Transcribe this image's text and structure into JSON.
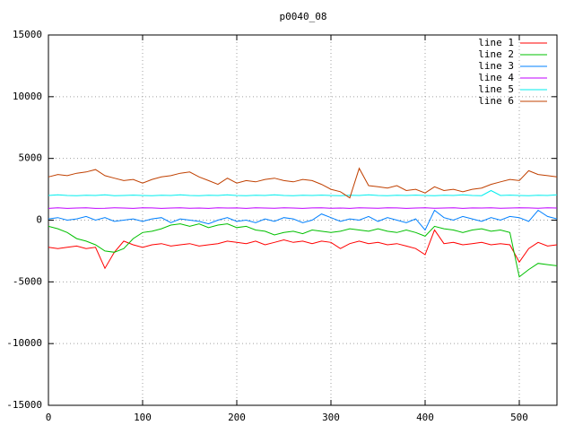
{
  "chart_data": {
    "type": "line",
    "title": "p0040_08",
    "x": [
      0,
      10,
      20,
      30,
      40,
      50,
      60,
      70,
      80,
      90,
      100,
      110,
      120,
      130,
      140,
      150,
      160,
      170,
      180,
      190,
      200,
      210,
      220,
      230,
      240,
      250,
      260,
      270,
      280,
      290,
      300,
      310,
      320,
      330,
      340,
      350,
      360,
      370,
      380,
      390,
      400,
      410,
      420,
      430,
      440,
      450,
      460,
      470,
      480,
      490,
      500,
      510,
      520,
      530,
      540
    ],
    "xlim": [
      0,
      540
    ],
    "xticks": [
      0,
      100,
      200,
      300,
      400,
      500
    ],
    "ylim": [
      -15000,
      15000
    ],
    "yticks": [
      -15000,
      -10000,
      -5000,
      0,
      5000,
      10000,
      15000
    ],
    "grid": true,
    "legend": "top-right",
    "series": [
      {
        "name": "line 1",
        "color": "#ff0000",
        "values": [
          -2200,
          -2300,
          -2200,
          -2100,
          -2300,
          -2200,
          -3900,
          -2600,
          -1700,
          -2000,
          -2200,
          -2000,
          -1900,
          -2100,
          -2000,
          -1900,
          -2100,
          -2000,
          -1900,
          -1700,
          -1800,
          -1900,
          -1700,
          -2000,
          -1800,
          -1600,
          -1800,
          -1700,
          -1900,
          -1700,
          -1800,
          -2300,
          -1900,
          -1700,
          -1900,
          -1800,
          -2000,
          -1900,
          -2100,
          -2300,
          -2800,
          -800,
          -1900,
          -1800,
          -2000,
          -1900,
          -1800,
          -2000,
          -1900,
          -2000,
          -3400,
          -2300,
          -1800,
          -2100,
          -2000
        ]
      },
      {
        "name": "line 2",
        "color": "#00c000",
        "values": [
          -500,
          -700,
          -1000,
          -1500,
          -1700,
          -2000,
          -2500,
          -2600,
          -2300,
          -1500,
          -1000,
          -900,
          -700,
          -400,
          -300,
          -500,
          -300,
          -600,
          -400,
          -300,
          -600,
          -500,
          -800,
          -900,
          -1200,
          -1000,
          -900,
          -1100,
          -800,
          -900,
          -1000,
          -900,
          -700,
          -800,
          -900,
          -700,
          -900,
          -1000,
          -800,
          -1000,
          -1300,
          -500,
          -700,
          -800,
          -1000,
          -800,
          -700,
          -900,
          -800,
          -1000,
          -4600,
          -4000,
          -3500,
          -3600,
          -3700
        ]
      },
      {
        "name": "line 3",
        "color": "#0080ff",
        "values": [
          100,
          200,
          0,
          100,
          300,
          0,
          200,
          -100,
          0,
          100,
          -100,
          100,
          200,
          -200,
          100,
          0,
          -100,
          -300,
          0,
          200,
          -100,
          0,
          -200,
          100,
          -100,
          200,
          100,
          -200,
          0,
          500,
          200,
          -100,
          100,
          0,
          300,
          -100,
          200,
          0,
          -200,
          100,
          -800,
          800,
          200,
          0,
          300,
          100,
          -100,
          200,
          0,
          300,
          200,
          -100,
          800,
          300,
          100
        ]
      },
      {
        "name": "line 4",
        "color": "#c000ff",
        "values": [
          950,
          1000,
          950,
          980,
          1000,
          950,
          960,
          1000,
          980,
          950,
          1000,
          990,
          950,
          980,
          1000,
          960,
          980,
          950,
          1000,
          980,
          990,
          950,
          1000,
          980,
          960,
          1000,
          980,
          950,
          990,
          1000,
          960,
          980,
          950,
          1000,
          980,
          960,
          1000,
          990,
          950,
          980,
          1000,
          960,
          980,
          1000,
          950,
          990,
          980,
          1000,
          960,
          980,
          1000,
          990,
          960,
          1000,
          980
        ]
      },
      {
        "name": "line 5",
        "color": "#00eeee",
        "values": [
          2000,
          2050,
          2000,
          1980,
          2020,
          2000,
          2050,
          1980,
          2000,
          2030,
          2000,
          1980,
          2020,
          2000,
          2050,
          2000,
          1980,
          2020,
          2000,
          2050,
          2000,
          1980,
          2020,
          2000,
          2050,
          2000,
          1980,
          2020,
          2000,
          2030,
          2000,
          1980,
          2020,
          2000,
          2050,
          2000,
          1980,
          2020,
          2000,
          2030,
          2000,
          1980,
          2020,
          2000,
          2050,
          2000,
          1980,
          2400,
          2000,
          2030,
          2000,
          1980,
          2020,
          2000,
          2050
        ]
      },
      {
        "name": "line 6",
        "color": "#c04000",
        "values": [
          3500,
          3700,
          3600,
          3800,
          3900,
          4100,
          3600,
          3400,
          3200,
          3300,
          3000,
          3300,
          3500,
          3600,
          3800,
          3900,
          3500,
          3200,
          2900,
          3400,
          3000,
          3200,
          3100,
          3300,
          3400,
          3200,
          3100,
          3300,
          3200,
          2900,
          2500,
          2300,
          1800,
          4200,
          2800,
          2700,
          2600,
          2800,
          2400,
          2500,
          2200,
          2700,
          2400,
          2500,
          2300,
          2500,
          2600,
          2900,
          3100,
          3300,
          3200,
          4000,
          3700,
          3600,
          3500
        ]
      }
    ]
  }
}
